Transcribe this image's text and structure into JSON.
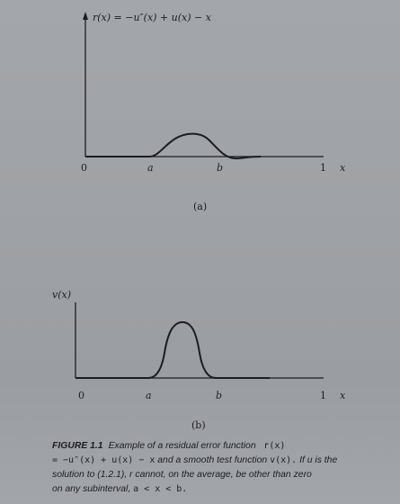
{
  "panel_a": {
    "y_axis_label": "r(x) = −u″(x) + u(x) − x",
    "tick_0": "0",
    "tick_a": "a",
    "tick_b": "b",
    "tick_1": "1",
    "x_axis_label": "x",
    "panel_label": "(a)"
  },
  "panel_b": {
    "y_axis_label": "v(x)",
    "tick_0": "0",
    "tick_a": "a",
    "tick_b": "b",
    "tick_1": "1",
    "x_axis_label": "x",
    "panel_label": "(b)"
  },
  "caption": {
    "figure_number": "FIGURE 1.1",
    "line1_text": "Example of a residual error function",
    "line1_math": "r(x)",
    "line2_math_a": "= −u″(x) + u(x) − x",
    "line2_text_a": "and a smooth test function",
    "line2_math_b": "v(x).",
    "line2_text_b": "If u is the",
    "line3": "solution to (1.2.1), r cannot, on the average, be other than zero",
    "line4_text": "on any subinterval,",
    "line4_math": "a < x < b."
  }
}
